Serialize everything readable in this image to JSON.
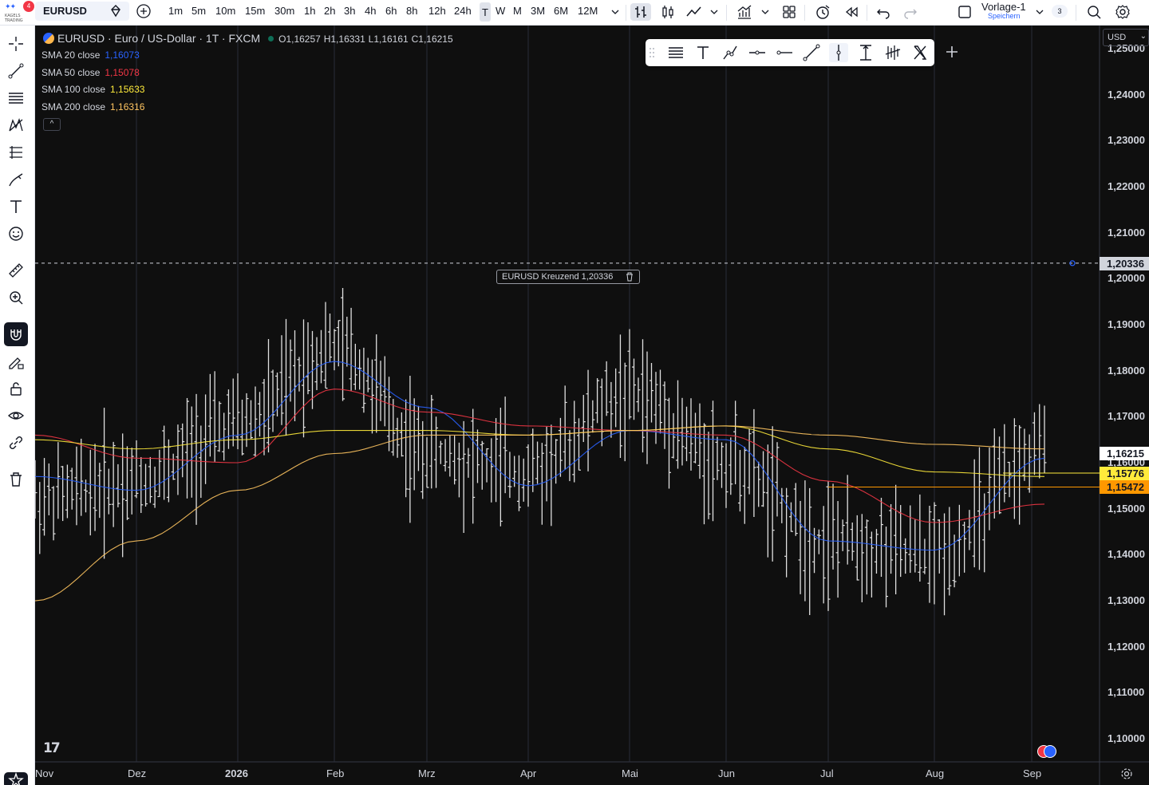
{
  "topbar": {
    "logo_badge": "4",
    "logo_text": "KAGELS TRADING",
    "symbol": "EURUSD",
    "intervals": [
      "1m",
      "5m",
      "10m",
      "15m",
      "30m",
      "1h",
      "2h",
      "3h",
      "4h",
      "6h",
      "8h",
      "12h",
      "24h",
      "T",
      "W",
      "M",
      "3M",
      "6M",
      "12M"
    ],
    "active_interval": "T",
    "layout_name": "Vorlage-1",
    "layout_sub": "Speichern",
    "layout_count": "3"
  },
  "legend": {
    "title": "EURUSD · Euro / US-Dollar · 1T · FXCM",
    "open": "O1,16257",
    "high": "H1,16331",
    "low": "L1,16161",
    "close": "C1,16215",
    "indicators": [
      {
        "label": "SMA 20 close",
        "value": "1,16073",
        "color": "#2962ff"
      },
      {
        "label": "SMA 50 close",
        "value": "1,15078",
        "color": "#f23645"
      },
      {
        "label": "SMA 100 close",
        "value": "1,15633",
        "color": "#ffeb3b"
      },
      {
        "label": "SMA 200 close",
        "value": "1,16316",
        "color": "#ffc561"
      }
    ],
    "collapse_glyph": "^"
  },
  "alert": {
    "label": "EURUSD Kreuzend 1,20336",
    "level": 1.20336
  },
  "price_axis": {
    "currency": "USD",
    "ticks": [
      "1,25000",
      "1,24000",
      "1,23000",
      "1,22000",
      "1,21000",
      "1,20000",
      "1,19000",
      "1,18000",
      "1,17000",
      "1,16000",
      "1,15000",
      "1,14000",
      "1,13000",
      "1,12000",
      "1,11000",
      "1,10000"
    ],
    "tags": [
      {
        "value": "1,20336",
        "bg": "#d1d4dc",
        "fg": "#131722"
      },
      {
        "value": "1,16215",
        "bg": "#ffffff",
        "fg": "#131722"
      },
      {
        "value": "1,15776",
        "bg": "#ffeb3b",
        "fg": "#131722"
      },
      {
        "value": "1,15472",
        "bg": "#ff9800",
        "fg": "#131722"
      }
    ]
  },
  "time_axis": {
    "labels": [
      "Nov",
      "Dez",
      "2026",
      "Feb",
      "Mrz",
      "Apr",
      "Mai",
      "Jun",
      "Jul",
      "Aug",
      "Sep"
    ]
  },
  "chart_data": {
    "type": "line",
    "title": "EURUSD · Euro / US-Dollar · 1T · FXCM",
    "ylim": [
      1.095,
      1.255
    ],
    "grid": true,
    "x": [
      "Nov",
      "Dez",
      "2026",
      "Feb",
      "Mrz",
      "Apr",
      "Mai",
      "Jun",
      "Jul",
      "Aug",
      "Sep"
    ],
    "series": [
      {
        "name": "EURUSD",
        "values": [
          1.152,
          1.156,
          1.168,
          1.185,
          1.162,
          1.158,
          1.175,
          1.16,
          1.143,
          1.14,
          1.162
        ]
      },
      {
        "name": "SMA 20 close",
        "values": [
          1.157,
          1.154,
          1.166,
          1.182,
          1.172,
          1.155,
          1.167,
          1.165,
          1.143,
          1.141,
          1.161
        ]
      },
      {
        "name": "SMA 50 close",
        "values": [
          1.166,
          1.161,
          1.16,
          1.176,
          1.171,
          1.168,
          1.167,
          1.166,
          1.156,
          1.147,
          1.151
        ]
      },
      {
        "name": "SMA 100 close",
        "values": [
          1.165,
          1.163,
          1.165,
          1.167,
          1.167,
          1.166,
          1.167,
          1.168,
          1.163,
          1.158,
          1.157
        ]
      },
      {
        "name": "SMA 200 close",
        "values": [
          1.13,
          1.143,
          1.154,
          1.162,
          1.166,
          1.166,
          1.167,
          1.168,
          1.166,
          1.164,
          1.163
        ]
      }
    ],
    "horizontal_levels": [
      1.20336,
      1.15776,
      1.15472
    ]
  }
}
